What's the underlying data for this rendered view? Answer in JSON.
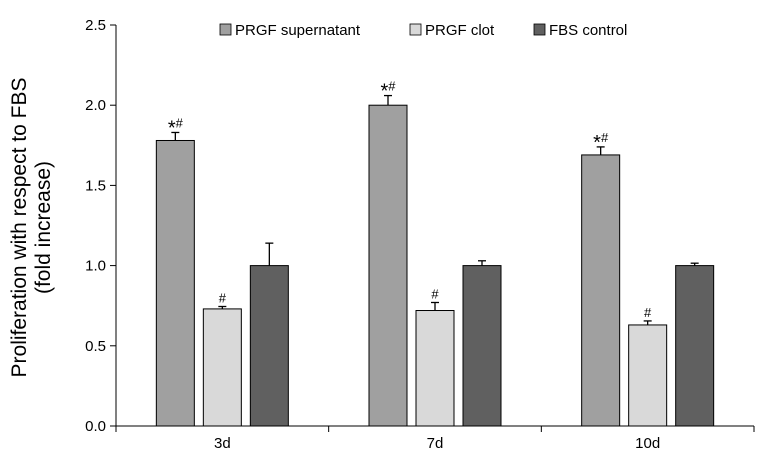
{
  "chart_data": {
    "type": "bar",
    "title": "",
    "xlabel": "",
    "ylabel_lines": [
      "Proliferation with respect to FBS",
      "(fold increase)"
    ],
    "categories": [
      "3d",
      "7d",
      "10d"
    ],
    "ylim": [
      0,
      2.5
    ],
    "yticks": [
      "0.0",
      "0.5",
      "1.0",
      "1.5",
      "2.0",
      "2.5"
    ],
    "grid": false,
    "legend_position": "top",
    "series": [
      {
        "name": "PRGF supernatant",
        "color": "#a0a0a0",
        "values": [
          1.78,
          2.0,
          1.69
        ],
        "errors": [
          0.05,
          0.06,
          0.05
        ],
        "annotations": [
          [
            "*",
            "#"
          ],
          [
            "*",
            "#"
          ],
          [
            "*",
            "#"
          ]
        ]
      },
      {
        "name": "PRGF clot",
        "color": "#d9d9d9",
        "values": [
          0.73,
          0.72,
          0.63
        ],
        "errors": [
          0.015,
          0.05,
          0.025
        ],
        "annotations": [
          [
            "#"
          ],
          [
            "#"
          ],
          [
            "#"
          ]
        ]
      },
      {
        "name": "FBS control",
        "color": "#606060",
        "values": [
          1.0,
          1.0,
          1.0
        ],
        "errors": [
          0.14,
          0.03,
          0.015
        ],
        "annotations": [
          [],
          [],
          []
        ]
      }
    ]
  }
}
